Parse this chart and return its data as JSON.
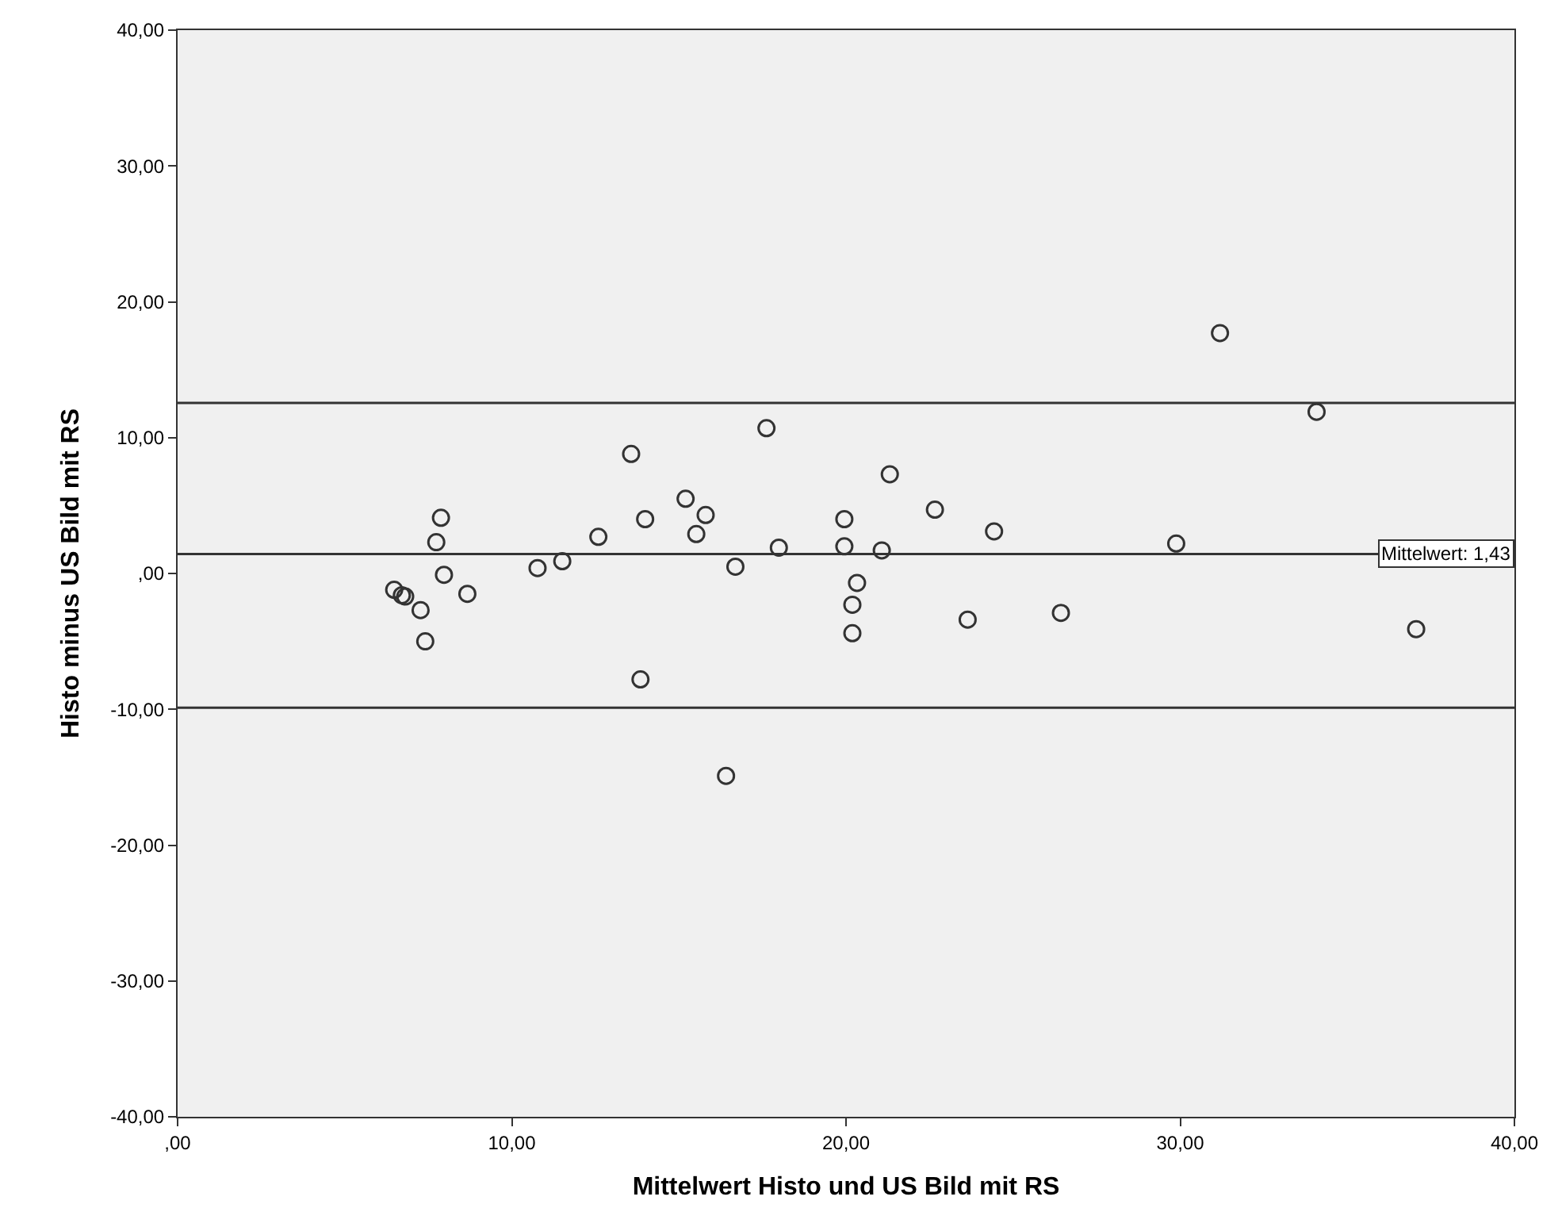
{
  "chart_data": {
    "type": "scatter",
    "xlabel": "Mittelwert Histo und US Bild mit RS",
    "ylabel": "Histo minus US Bild mit RS",
    "x": [
      6.48,
      6.71,
      6.81,
      7.27,
      7.41,
      7.74,
      7.88,
      7.97,
      8.67,
      10.77,
      11.51,
      12.59,
      13.57,
      13.85,
      13.99,
      15.2,
      15.52,
      15.8,
      16.41,
      16.69,
      17.62,
      17.99,
      19.95,
      19.95,
      20.19,
      20.19,
      20.33,
      21.07,
      21.31,
      22.66,
      24.43,
      23.64,
      26.43,
      29.88,
      31.19,
      34.08,
      37.06
    ],
    "series": [
      {
        "color": "#333333",
        "values": [
          -1.2,
          -1.6,
          -1.7,
          -2.7,
          -5.0,
          2.3,
          4.1,
          -0.1,
          -1.5,
          0.4,
          0.9,
          2.7,
          8.8,
          -7.8,
          4.0,
          5.5,
          2.9,
          4.3,
          -14.9,
          0.5,
          10.7,
          1.9,
          4.0,
          2.0,
          -2.3,
          -4.4,
          -0.7,
          1.7,
          7.3,
          4.7,
          3.1,
          -3.4,
          -2.9,
          2.2,
          17.7,
          11.9,
          -4.1
        ]
      }
    ],
    "marker": "circle",
    "grid": false,
    "xlim": [
      0,
      40
    ],
    "xticks": [
      {
        "value": 0,
        "label": ",00"
      },
      {
        "value": 10,
        "label": "10,00"
      },
      {
        "value": 20,
        "label": "20,00"
      },
      {
        "value": 30,
        "label": "30,00"
      },
      {
        "value": 40,
        "label": "40,00"
      }
    ],
    "ylim": [
      -40,
      40
    ],
    "yticks": [
      {
        "value": -40,
        "label": "-40,00"
      },
      {
        "value": -30,
        "label": "-30,00"
      },
      {
        "value": -20,
        "label": "-20,00"
      },
      {
        "value": -10,
        "label": "-10,00"
      },
      {
        "value": 0,
        "label": ",00"
      },
      {
        "value": 10,
        "label": "10,00"
      },
      {
        "value": 20,
        "label": "20,00"
      },
      {
        "value": 30,
        "label": "30,00"
      },
      {
        "value": 40,
        "label": "40,00"
      }
    ],
    "ref_lines": [
      {
        "axis": "y",
        "value": 12.56,
        "label": null,
        "color": "#333333"
      },
      {
        "axis": "y",
        "value": 1.43,
        "label": "Mittelwert: 1,43",
        "color": "#333333"
      },
      {
        "axis": "y",
        "value": -9.88,
        "label": null,
        "color": "#333333"
      }
    ]
  }
}
